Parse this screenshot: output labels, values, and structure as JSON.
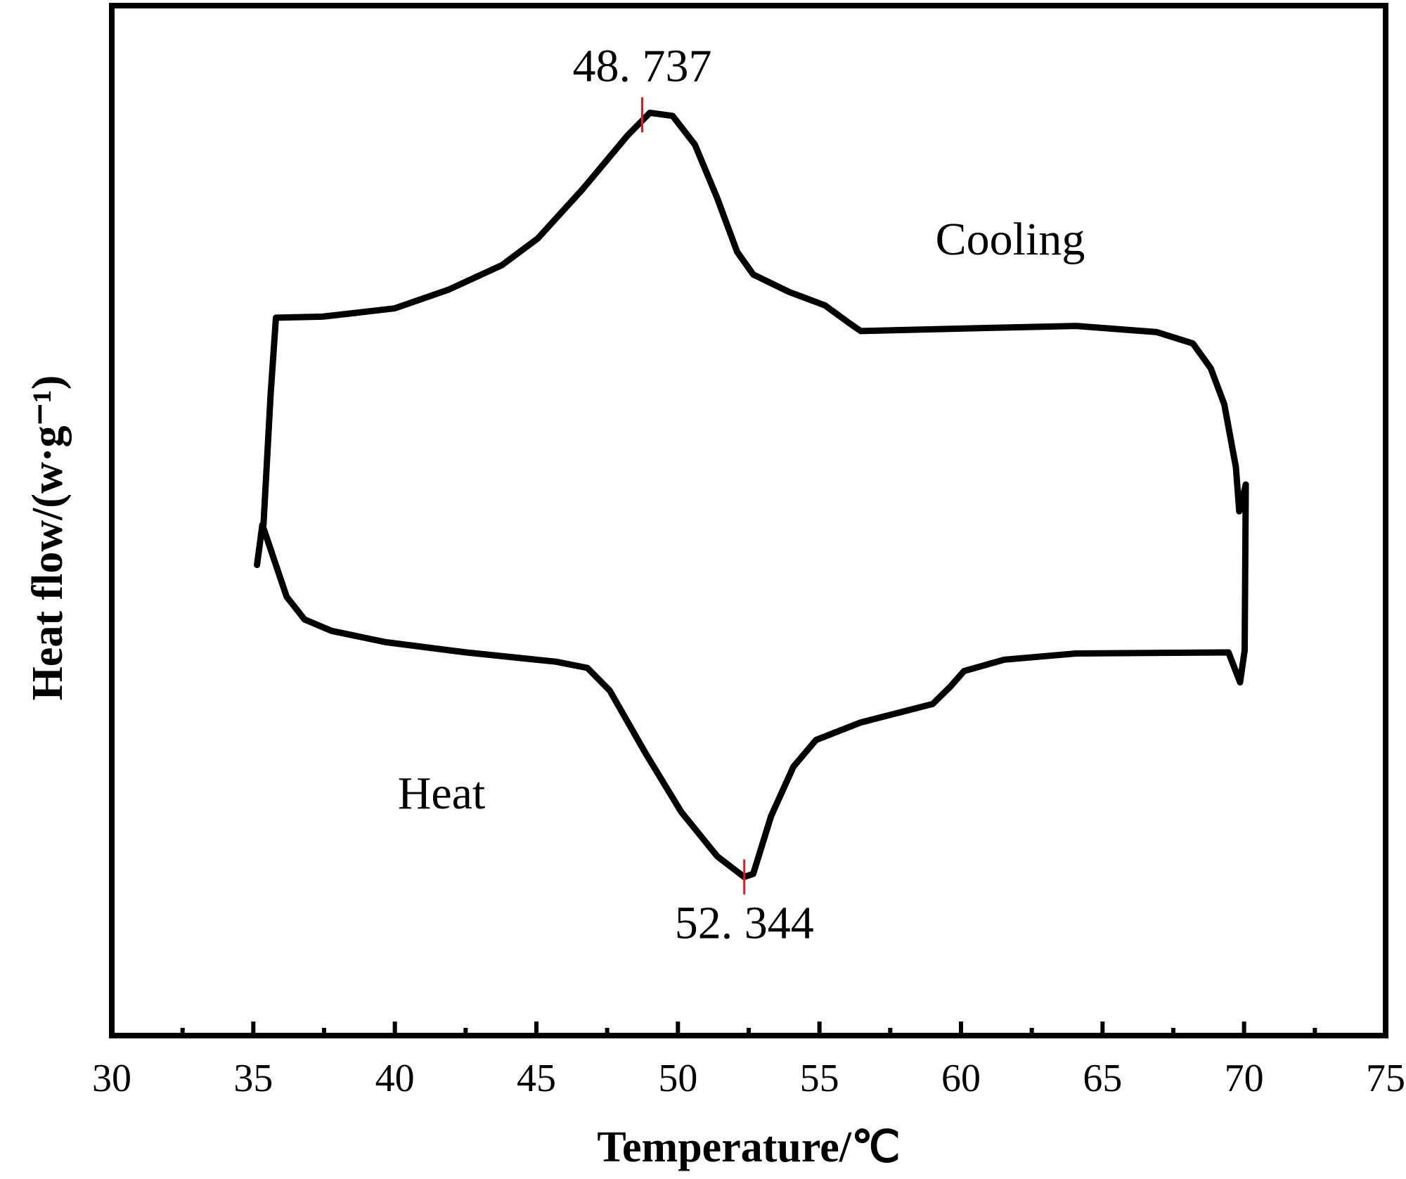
{
  "chart_data": {
    "type": "line",
    "x_label": "Temperature/℃",
    "y_label": "Heat flow/(w·g⁻¹)",
    "xlim": [
      30,
      75
    ],
    "xticks": [
      30,
      35,
      40,
      45,
      50,
      55,
      60,
      65,
      70,
      75
    ],
    "xminorticks": [
      32.5,
      37.5,
      42.5,
      47.5,
      52.5,
      57.5,
      62.5,
      67.5,
      72.5
    ],
    "ylim": [
      0,
      10
    ],
    "series": [
      {
        "name": "Heat",
        "color": "#000000",
        "x": [
          35.13,
          35.32,
          35.7,
          36.18,
          36.81,
          37.76,
          39.67,
          42.52,
          45.69,
          46.8,
          47.59,
          48.86,
          50.12,
          51.39,
          52.34,
          52.66,
          53.29,
          54.08,
          54.88,
          56.46,
          59.0,
          59.63,
          60.11,
          61.53,
          64.07,
          69.45,
          69.86,
          70.02,
          70.06
        ],
        "values": [
          4.57,
          4.96,
          4.65,
          4.26,
          4.04,
          3.93,
          3.82,
          3.72,
          3.63,
          3.57,
          3.35,
          2.74,
          2.17,
          1.74,
          1.54,
          1.57,
          2.13,
          2.61,
          2.87,
          3.04,
          3.22,
          3.39,
          3.54,
          3.65,
          3.71,
          3.72,
          3.43,
          3.74,
          5.35
        ]
      },
      {
        "name": "Cooling",
        "color": "#000000",
        "x": [
          70.06,
          69.83,
          69.71,
          69.3,
          68.82,
          68.19,
          66.92,
          64.07,
          60.9,
          56.46,
          55.99,
          55.19,
          53.93,
          52.66,
          52.09,
          51.39,
          50.6,
          49.81,
          49.01,
          48.22,
          46.64,
          45.05,
          43.78,
          41.88,
          39.98,
          37.45,
          35.8,
          35.61,
          35.36
        ],
        "values": [
          5.35,
          5.09,
          5.52,
          6.13,
          6.48,
          6.72,
          6.83,
          6.89,
          6.87,
          6.84,
          6.93,
          7.09,
          7.22,
          7.39,
          7.61,
          8.13,
          8.65,
          8.93,
          8.96,
          8.74,
          8.22,
          7.74,
          7.48,
          7.24,
          7.06,
          6.98,
          6.97,
          6.22,
          4.96
        ]
      }
    ],
    "annotations": [
      {
        "text": "48. 737",
        "x": 48.737,
        "y": 8.94
      },
      {
        "text": "52. 344",
        "x": 52.344,
        "y": 1.54
      }
    ],
    "marker_color": "#e8151b"
  }
}
